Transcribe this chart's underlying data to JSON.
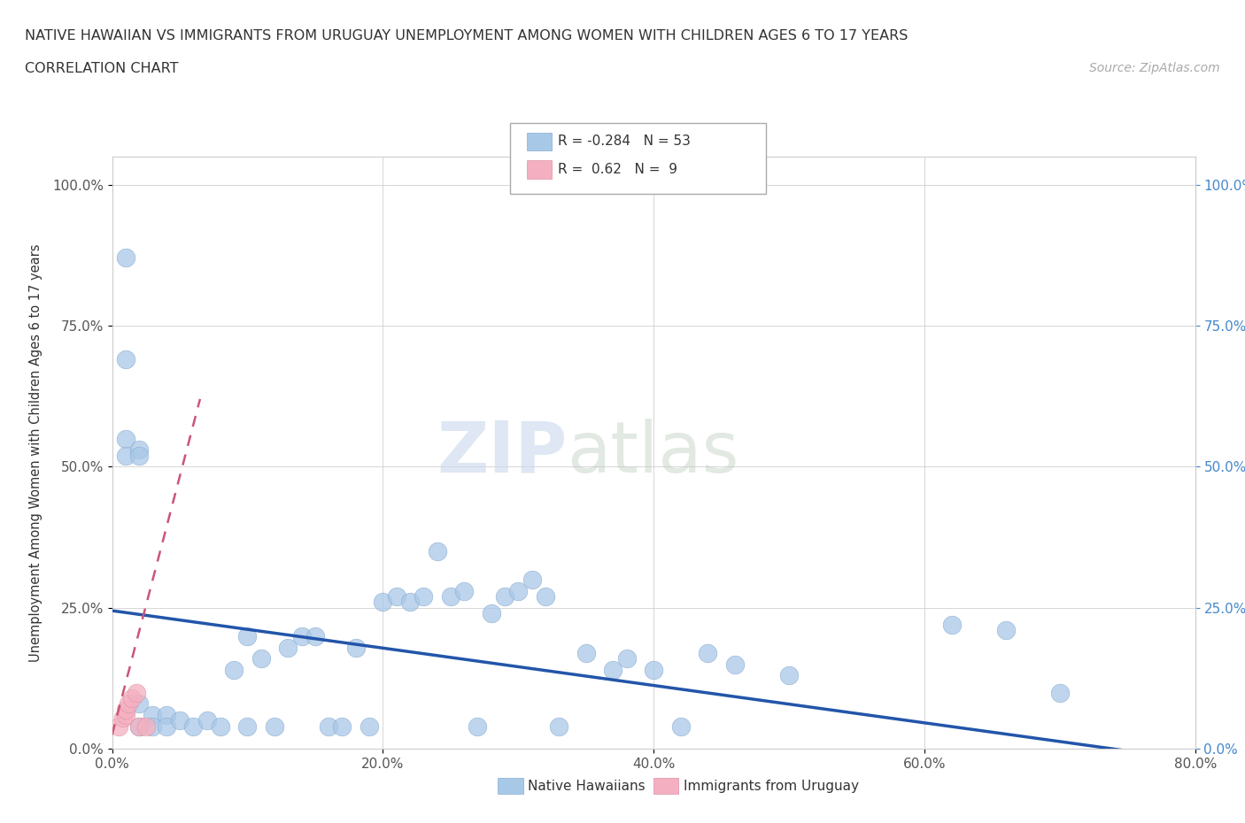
{
  "title_line1": "NATIVE HAWAIIAN VS IMMIGRANTS FROM URUGUAY UNEMPLOYMENT AMONG WOMEN WITH CHILDREN AGES 6 TO 17 YEARS",
  "title_line2": "CORRELATION CHART",
  "source_text": "Source: ZipAtlas.com",
  "ylabel": "Unemployment Among Women with Children Ages 6 to 17 years",
  "xlim": [
    0.0,
    0.8
  ],
  "ylim": [
    0.0,
    1.05
  ],
  "xticks": [
    0.0,
    0.2,
    0.4,
    0.6,
    0.8
  ],
  "xtick_labels": [
    "0.0%",
    "20.0%",
    "40.0%",
    "60.0%",
    "80.0%"
  ],
  "yticks": [
    0.0,
    0.25,
    0.5,
    0.75,
    1.0
  ],
  "ytick_labels": [
    "0.0%",
    "25.0%",
    "50.0%",
    "75.0%",
    "100.0%"
  ],
  "r_blue": -0.284,
  "n_blue": 53,
  "r_pink": 0.62,
  "n_pink": 9,
  "blue_color": "#a8c8e8",
  "pink_color": "#f4b0c0",
  "trend_blue_color": "#2255aa",
  "trend_pink_color": "#cc5577",
  "watermark_zip": "ZIP",
  "watermark_atlas": "atlas",
  "blue_scatter_x": [
    0.01,
    0.01,
    0.01,
    0.01,
    0.02,
    0.02,
    0.02,
    0.02,
    0.03,
    0.03,
    0.04,
    0.04,
    0.05,
    0.06,
    0.07,
    0.08,
    0.09,
    0.1,
    0.1,
    0.11,
    0.12,
    0.13,
    0.14,
    0.15,
    0.16,
    0.17,
    0.18,
    0.19,
    0.2,
    0.21,
    0.22,
    0.23,
    0.24,
    0.25,
    0.26,
    0.27,
    0.28,
    0.29,
    0.3,
    0.31,
    0.32,
    0.33,
    0.35,
    0.37,
    0.38,
    0.4,
    0.42,
    0.44,
    0.46,
    0.5,
    0.62,
    0.66,
    0.7
  ],
  "blue_scatter_y": [
    0.87,
    0.69,
    0.55,
    0.52,
    0.53,
    0.52,
    0.08,
    0.04,
    0.06,
    0.04,
    0.06,
    0.04,
    0.05,
    0.04,
    0.05,
    0.04,
    0.14,
    0.2,
    0.04,
    0.16,
    0.04,
    0.18,
    0.2,
    0.2,
    0.04,
    0.04,
    0.18,
    0.04,
    0.26,
    0.27,
    0.26,
    0.27,
    0.35,
    0.27,
    0.28,
    0.04,
    0.24,
    0.27,
    0.28,
    0.3,
    0.27,
    0.04,
    0.17,
    0.14,
    0.16,
    0.14,
    0.04,
    0.17,
    0.15,
    0.13,
    0.22,
    0.21,
    0.1
  ],
  "pink_scatter_x": [
    0.005,
    0.008,
    0.01,
    0.01,
    0.012,
    0.015,
    0.018,
    0.02,
    0.025
  ],
  "pink_scatter_y": [
    0.04,
    0.055,
    0.06,
    0.07,
    0.08,
    0.09,
    0.1,
    0.04,
    0.04
  ],
  "blue_trend_x0": 0.0,
  "blue_trend_y0": 0.245,
  "blue_trend_x1": 0.8,
  "blue_trend_y1": -0.02,
  "pink_trend_x0": 0.0,
  "pink_trend_y0": 0.025,
  "pink_trend_x1": 0.065,
  "pink_trend_y1": 0.62
}
